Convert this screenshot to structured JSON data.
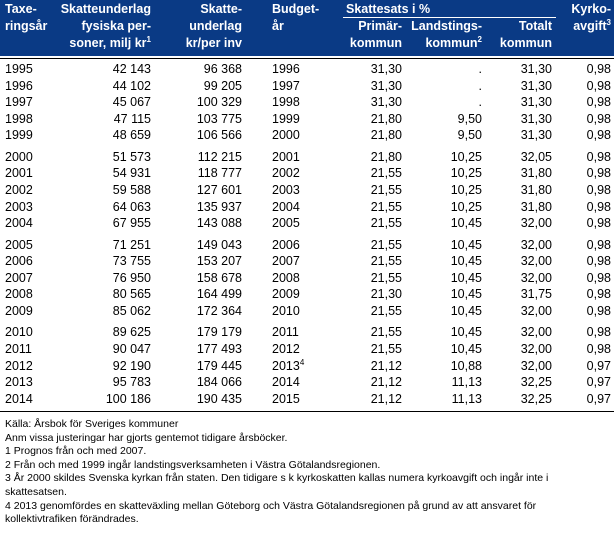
{
  "header": {
    "col_year": [
      "Taxe-",
      "ringsår"
    ],
    "col_base": [
      "Skatteunderlag",
      "fysiska per-",
      "soner, milj kr"
    ],
    "col_base_sup": "1",
    "col_per_inv": [
      "Skatte-",
      "underlag",
      "kr/per inv"
    ],
    "col_budget": [
      "Budget-",
      "år"
    ],
    "group": "Skattesats i %",
    "col_primar": [
      "Primär-",
      "kommun"
    ],
    "col_landsting": [
      "Landstings-",
      "kommun"
    ],
    "col_landsting_sup": "2",
    "col_totalt": [
      "Totalt",
      "kommun"
    ],
    "col_kyrko": [
      "Kyrko-",
      "avgift"
    ],
    "col_kyrko_sup": "3"
  },
  "rows": [
    {
      "year": "1995",
      "base": "42 143",
      "per_inv": "96 368",
      "budget": "1996",
      "budget_sup": "",
      "primar": "31,30",
      "landsting": ".",
      "totalt": "31,30",
      "kyrko": "0,98"
    },
    {
      "year": "1996",
      "base": "44 102",
      "per_inv": "99 205",
      "budget": "1997",
      "budget_sup": "",
      "primar": "31,30",
      "landsting": ".",
      "totalt": "31,30",
      "kyrko": "0,98"
    },
    {
      "year": "1997",
      "base": "45 067",
      "per_inv": "100 329",
      "budget": "1998",
      "budget_sup": "",
      "primar": "31,30",
      "landsting": ".",
      "totalt": "31,30",
      "kyrko": "0,98"
    },
    {
      "year": "1998",
      "base": "47 115",
      "per_inv": "103 775",
      "budget": "1999",
      "budget_sup": "",
      "primar": "21,80",
      "landsting": "9,50",
      "totalt": "31,30",
      "kyrko": "0,98"
    },
    {
      "year": "1999",
      "base": "48 659",
      "per_inv": "106 566",
      "budget": "2000",
      "budget_sup": "",
      "primar": "21,80",
      "landsting": "9,50",
      "totalt": "31,30",
      "kyrko": "0,98"
    },
    {
      "year": "2000",
      "base": "51 573",
      "per_inv": "112 215",
      "budget": "2001",
      "budget_sup": "",
      "primar": "21,80",
      "landsting": "10,25",
      "totalt": "32,05",
      "kyrko": "0,98"
    },
    {
      "year": "2001",
      "base": "54 931",
      "per_inv": "118 777",
      "budget": "2002",
      "budget_sup": "",
      "primar": "21,55",
      "landsting": "10,25",
      "totalt": "31,80",
      "kyrko": "0,98"
    },
    {
      "year": "2002",
      "base": "59 588",
      "per_inv": "127 601",
      "budget": "2003",
      "budget_sup": "",
      "primar": "21,55",
      "landsting": "10,25",
      "totalt": "31,80",
      "kyrko": "0,98"
    },
    {
      "year": "2003",
      "base": "64 063",
      "per_inv": "135 937",
      "budget": "2004",
      "budget_sup": "",
      "primar": "21,55",
      "landsting": "10,25",
      "totalt": "31,80",
      "kyrko": "0,98"
    },
    {
      "year": "2004",
      "base": "67 955",
      "per_inv": "143 088",
      "budget": "2005",
      "budget_sup": "",
      "primar": "21,55",
      "landsting": "10,45",
      "totalt": "32,00",
      "kyrko": "0,98"
    },
    {
      "year": "2005",
      "base": "71 251",
      "per_inv": "149 043",
      "budget": "2006",
      "budget_sup": "",
      "primar": "21,55",
      "landsting": "10,45",
      "totalt": "32,00",
      "kyrko": "0,98"
    },
    {
      "year": "2006",
      "base": "73 755",
      "per_inv": "153 207",
      "budget": "2007",
      "budget_sup": "",
      "primar": "21,55",
      "landsting": "10,45",
      "totalt": "32,00",
      "kyrko": "0,98"
    },
    {
      "year": "2007",
      "base": "76 950",
      "per_inv": "158 678",
      "budget": "2008",
      "budget_sup": "",
      "primar": "21,55",
      "landsting": "10,45",
      "totalt": "32,00",
      "kyrko": "0,98"
    },
    {
      "year": "2008",
      "base": "80 565",
      "per_inv": "164 499",
      "budget": "2009",
      "budget_sup": "",
      "primar": "21,30",
      "landsting": "10,45",
      "totalt": "31,75",
      "kyrko": "0,98"
    },
    {
      "year": "2009",
      "base": "85 062",
      "per_inv": "172 364",
      "budget": "2010",
      "budget_sup": "",
      "primar": "21,55",
      "landsting": "10,45",
      "totalt": "32,00",
      "kyrko": "0,98"
    },
    {
      "year": "2010",
      "base": "89 625",
      "per_inv": "179 179",
      "budget": "2011",
      "budget_sup": "",
      "primar": "21,55",
      "landsting": "10,45",
      "totalt": "32,00",
      "kyrko": "0,98"
    },
    {
      "year": "2011",
      "base": "90 047",
      "per_inv": "177 493",
      "budget": "2012",
      "budget_sup": "",
      "primar": "21,55",
      "landsting": "10,45",
      "totalt": "32,00",
      "kyrko": "0,98"
    },
    {
      "year": "2012",
      "base": "92 190",
      "per_inv": "179 445",
      "budget": "2013",
      "budget_sup": "4",
      "primar": "21,12",
      "landsting": "10,88",
      "totalt": "32,00",
      "kyrko": "0,97"
    },
    {
      "year": "2013",
      "base": "95 783",
      "per_inv": "184 066",
      "budget": "2014",
      "budget_sup": "",
      "primar": "21,12",
      "landsting": "11,13",
      "totalt": "32,25",
      "kyrko": "0,97"
    },
    {
      "year": "2014",
      "base": "100 186",
      "per_inv": "190 435",
      "budget": "2015",
      "budget_sup": "",
      "primar": "21,12",
      "landsting": "11,13",
      "totalt": "32,25",
      "kyrko": "0,97"
    }
  ],
  "notes": [
    "Källa:  Årsbok för Sveriges kommuner",
    "Anm vissa justeringar har gjorts gentemot tidigare årsböcker.",
    "1  Prognos från och med 2007.",
    "2  Från och med 1999 ingår landstingsverksamheten i Västra Götalandsregionen.",
    "3  År 2000 skildes Svenska kyrkan från staten. Den tidigare s k kyrkoskatten kallas numera kyrkoavgift och ingår inte i skattesatsen.",
    "4  2013 genomfördes en skatteväxling mellan Göteborg och Västra Götalandsregionen på grund av att ansvaret för kollektivtrafiken förändrades."
  ],
  "colors": {
    "header_bg": "#0a3a85",
    "header_text": "#ffffff"
  }
}
